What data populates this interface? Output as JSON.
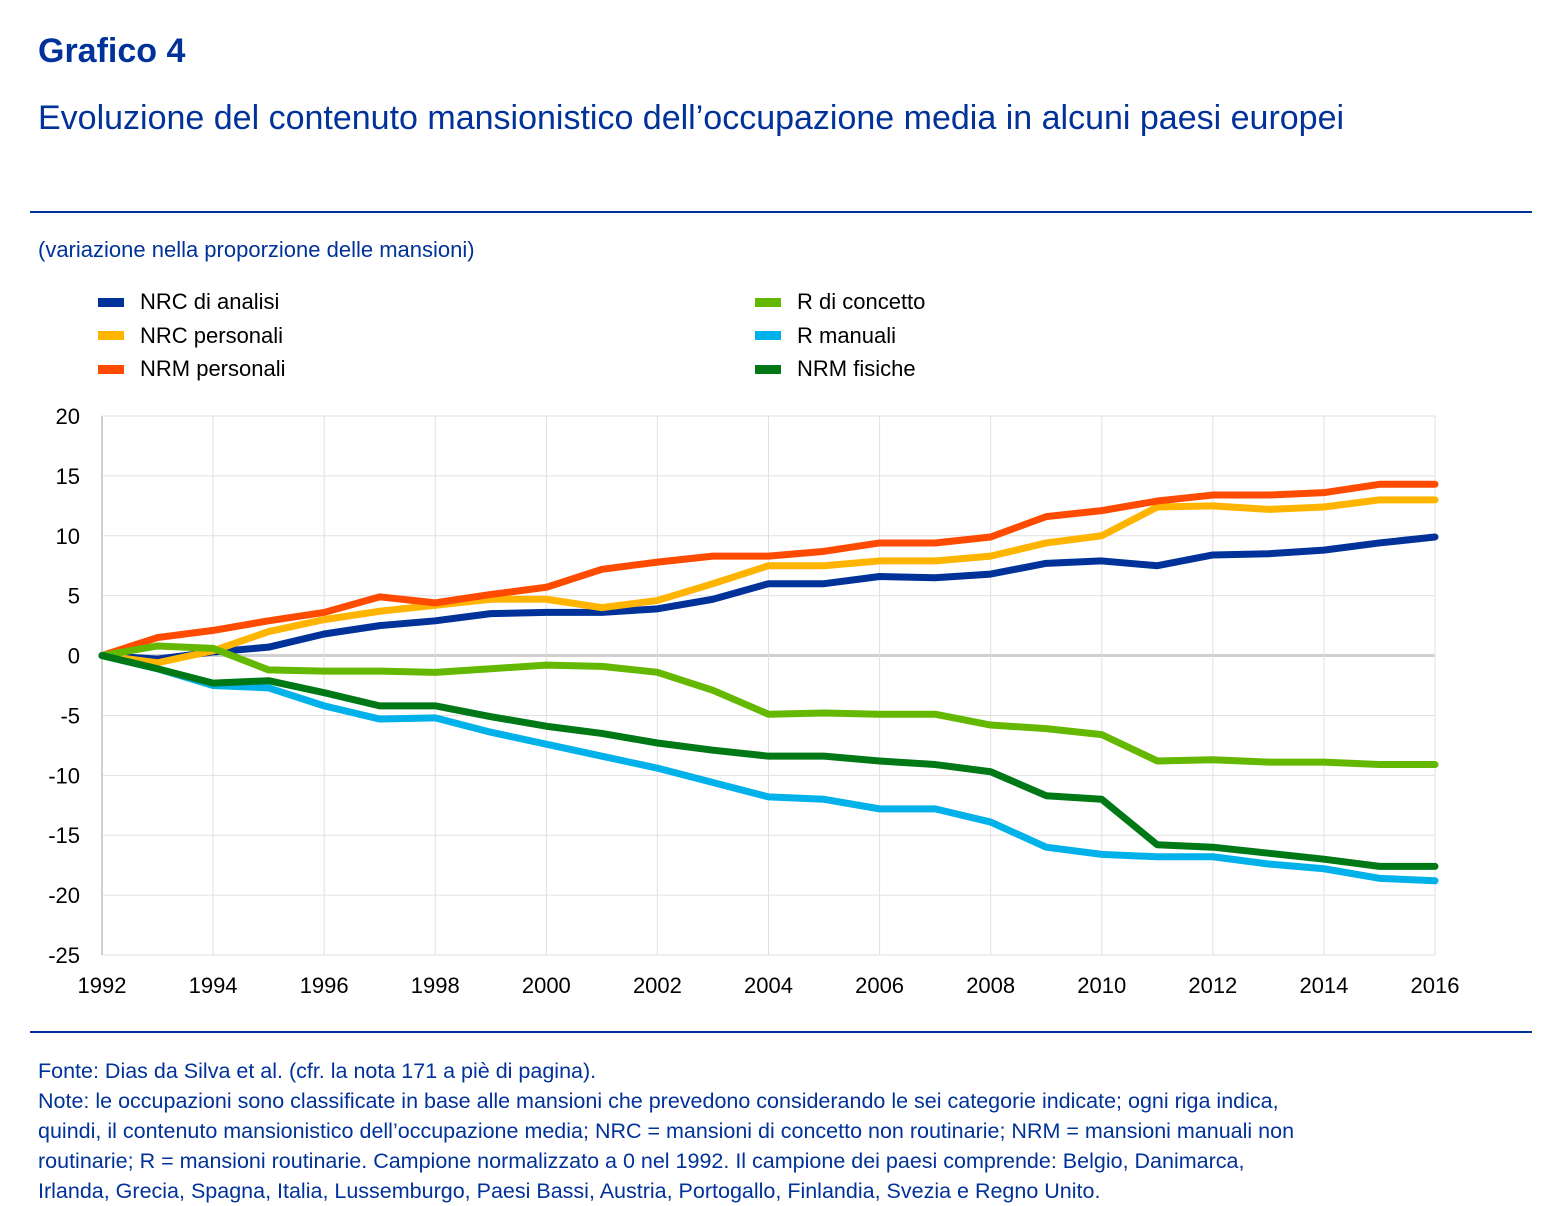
{
  "header": {
    "title": "Grafico 4",
    "subtitle": "Evoluzione del contenuto mansionistico dell’occupazione media in alcuni paesi europei",
    "units": "(variazione nella proporzione delle mansioni)"
  },
  "chart_data": {
    "type": "line",
    "title": "Evoluzione del contenuto mansionistico dell’occupazione media in alcuni paesi europei",
    "ylabel": "(variazione nella proporzione delle mansioni)",
    "xlim": [
      1992,
      2016
    ],
    "ylim": [
      -25,
      20
    ],
    "xticks": [
      1992,
      1994,
      1996,
      1998,
      2000,
      2002,
      2004,
      2006,
      2008,
      2010,
      2012,
      2014,
      2016
    ],
    "yticks": [
      20,
      15,
      10,
      5,
      0,
      -5,
      -10,
      -15,
      -20,
      -25
    ],
    "grid": true,
    "legend": "top",
    "x": [
      1992,
      1993,
      1994,
      1995,
      1996,
      1997,
      1998,
      1999,
      2000,
      2001,
      2002,
      2003,
      2004,
      2005,
      2006,
      2007,
      2008,
      2009,
      2010,
      2011,
      2012,
      2013,
      2014,
      2015,
      2016
    ],
    "series": [
      {
        "name": "NRC di analisi",
        "color": "#003299",
        "values": [
          0,
          -0.3,
          0.3,
          0.7,
          1.8,
          2.5,
          2.9,
          3.5,
          3.6,
          3.6,
          3.9,
          4.7,
          6.0,
          6.0,
          6.6,
          6.5,
          6.8,
          7.7,
          7.9,
          7.5,
          8.4,
          8.5,
          8.8,
          9.4,
          9.9
        ]
      },
      {
        "name": "NRC personali",
        "color": "#ffb400",
        "values": [
          0,
          -0.6,
          0.4,
          2.0,
          3.0,
          3.7,
          4.2,
          4.7,
          4.7,
          4.0,
          4.6,
          6.0,
          7.5,
          7.5,
          7.9,
          7.9,
          8.3,
          9.4,
          10.0,
          12.4,
          12.5,
          12.2,
          12.4,
          13.0,
          13.0
        ]
      },
      {
        "name": "NRM personali",
        "color": "#ff4b00",
        "values": [
          0,
          1.5,
          2.1,
          2.9,
          3.6,
          4.9,
          4.4,
          5.1,
          5.7,
          7.2,
          7.8,
          8.3,
          8.3,
          8.7,
          9.4,
          9.4,
          9.9,
          11.6,
          12.1,
          12.9,
          13.4,
          13.4,
          13.6,
          14.3,
          14.3
        ]
      },
      {
        "name": "R di concetto",
        "color": "#65b800",
        "values": [
          0,
          0.8,
          0.6,
          -1.2,
          -1.3,
          -1.3,
          -1.4,
          -1.1,
          -0.8,
          -0.9,
          -1.4,
          -2.9,
          -4.9,
          -4.8,
          -4.9,
          -4.9,
          -5.8,
          -6.1,
          -6.6,
          -8.8,
          -8.7,
          -8.9,
          -8.9,
          -9.1,
          -9.1
        ]
      },
      {
        "name": "R manuali",
        "color": "#00b1ea",
        "values": [
          0,
          -1.1,
          -2.5,
          -2.7,
          -4.2,
          -5.3,
          -5.2,
          -6.4,
          -7.4,
          -8.4,
          -9.4,
          -10.6,
          -11.8,
          -12.0,
          -12.8,
          -12.8,
          -13.9,
          -16.0,
          -16.6,
          -16.8,
          -16.8,
          -17.4,
          -17.8,
          -18.6,
          -18.8
        ]
      },
      {
        "name": "NRM fisiche",
        "color": "#007816",
        "values": [
          0,
          -1.1,
          -2.3,
          -2.1,
          -3.1,
          -4.2,
          -4.2,
          -5.1,
          -5.9,
          -6.5,
          -7.3,
          -7.9,
          -8.4,
          -8.4,
          -8.8,
          -9.1,
          -9.7,
          -11.7,
          -12.0,
          -15.8,
          -16.0,
          -16.5,
          -17.0,
          -17.6,
          -17.6
        ]
      }
    ]
  },
  "footer": {
    "lines": [
      "Fonte: Dias da Silva et al. (cfr. la nota 171 a piè di pagina).",
      "Note: le occupazioni sono classificate in base alle mansioni che prevedono considerando le sei categorie indicate; ogni riga indica,",
      "quindi, il contenuto mansionistico dell’occupazione media; NRC = mansioni di concetto non routinarie; NRM = mansioni manuali non",
      "routinarie; R = mansioni routinarie. Campione normalizzato a 0 nel 1992. Il campione dei paesi comprende: Belgio, Danimarca,",
      "Irlanda, Grecia, Spagna, Italia, Lussemburgo, Paesi Bassi, Austria, Portogallo, Finlandia, Svezia e Regno Unito."
    ]
  }
}
